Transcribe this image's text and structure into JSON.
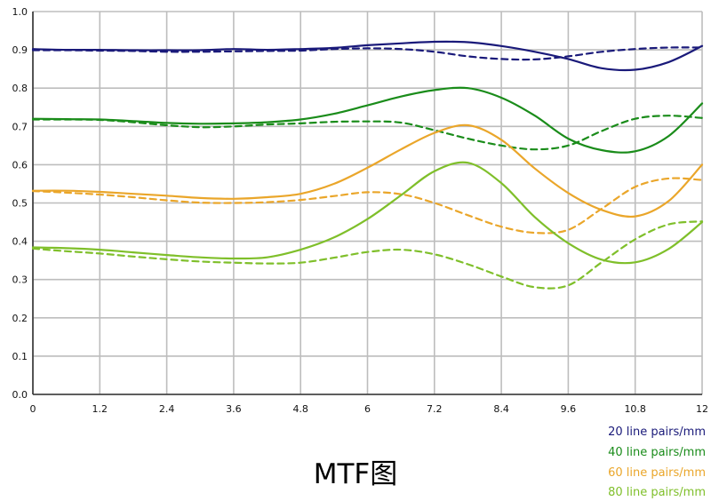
{
  "caption": "MTF图",
  "chart_data": {
    "type": "line",
    "title": "",
    "xlabel": "",
    "ylabel": "",
    "xlim": [
      0,
      12
    ],
    "ylim": [
      0,
      1.0
    ],
    "xticks": [
      "0",
      "1.2",
      "2.4",
      "3.6",
      "4.8",
      "6",
      "7.2",
      "8.4",
      "9.6",
      "10.8",
      "12"
    ],
    "yticks": [
      "0.0",
      "0.1",
      "0.2",
      "0.3",
      "0.4",
      "0.5",
      "0.6",
      "0.7",
      "0.8",
      "0.9",
      "1.0"
    ],
    "grid": true,
    "legend_position": "bottom-right",
    "x": [
      0,
      0.6,
      1.2,
      1.8,
      2.4,
      3.0,
      3.6,
      4.2,
      4.8,
      5.4,
      6.0,
      6.6,
      7.2,
      7.8,
      8.4,
      9.0,
      9.6,
      10.2,
      10.8,
      11.4,
      12.0
    ],
    "series": [
      {
        "name": "20 line pairs/mm",
        "style": "solid",
        "color": "#1a1a7a",
        "values": [
          0.902,
          0.9,
          0.9,
          0.899,
          0.899,
          0.899,
          0.902,
          0.9,
          0.902,
          0.905,
          0.912,
          0.917,
          0.921,
          0.92,
          0.91,
          0.895,
          0.876,
          0.852,
          0.848,
          0.868,
          0.91
        ]
      },
      {
        "name": "20 line pairs/mm",
        "style": "dashed",
        "color": "#1a1a7a",
        "values": [
          0.899,
          0.899,
          0.898,
          0.897,
          0.895,
          0.895,
          0.896,
          0.897,
          0.898,
          0.902,
          0.904,
          0.902,
          0.895,
          0.883,
          0.876,
          0.875,
          0.883,
          0.895,
          0.902,
          0.906,
          0.906
        ]
      },
      {
        "name": "40 line pairs/mm",
        "style": "solid",
        "color": "#1a8c1a",
        "values": [
          0.72,
          0.719,
          0.718,
          0.714,
          0.709,
          0.707,
          0.708,
          0.711,
          0.718,
          0.733,
          0.755,
          0.778,
          0.795,
          0.8,
          0.775,
          0.728,
          0.668,
          0.638,
          0.635,
          0.675,
          0.76
        ]
      },
      {
        "name": "40 line pairs/mm",
        "style": "dashed",
        "color": "#1a8c1a",
        "values": [
          0.718,
          0.718,
          0.717,
          0.711,
          0.703,
          0.698,
          0.7,
          0.705,
          0.708,
          0.712,
          0.713,
          0.71,
          0.69,
          0.668,
          0.65,
          0.64,
          0.65,
          0.688,
          0.72,
          0.728,
          0.722
        ]
      },
      {
        "name": "60 line pairs/mm",
        "style": "solid",
        "color": "#eaa62a",
        "values": [
          0.532,
          0.532,
          0.529,
          0.524,
          0.519,
          0.513,
          0.511,
          0.515,
          0.524,
          0.55,
          0.592,
          0.64,
          0.683,
          0.703,
          0.665,
          0.59,
          0.526,
          0.482,
          0.465,
          0.505,
          0.6
        ]
      },
      {
        "name": "60 line pairs/mm",
        "style": "dashed",
        "color": "#eaa62a",
        "values": [
          0.531,
          0.527,
          0.522,
          0.515,
          0.507,
          0.501,
          0.5,
          0.502,
          0.508,
          0.518,
          0.528,
          0.523,
          0.5,
          0.468,
          0.438,
          0.422,
          0.43,
          0.485,
          0.542,
          0.564,
          0.56
        ]
      },
      {
        "name": "80 line pairs/mm",
        "style": "solid",
        "color": "#7fbf2a",
        "values": [
          0.384,
          0.382,
          0.378,
          0.371,
          0.364,
          0.358,
          0.355,
          0.358,
          0.378,
          0.41,
          0.458,
          0.52,
          0.583,
          0.605,
          0.552,
          0.463,
          0.395,
          0.352,
          0.345,
          0.38,
          0.45
        ]
      },
      {
        "name": "80 line pairs/mm",
        "style": "dashed",
        "color": "#7fbf2a",
        "values": [
          0.381,
          0.374,
          0.368,
          0.36,
          0.353,
          0.347,
          0.344,
          0.342,
          0.344,
          0.357,
          0.372,
          0.378,
          0.366,
          0.34,
          0.308,
          0.28,
          0.285,
          0.345,
          0.405,
          0.444,
          0.452
        ]
      }
    ],
    "legend": [
      {
        "label": "20 line pairs/mm",
        "color": "#1a1a7a"
      },
      {
        "label": "40 line pairs/mm",
        "color": "#1a8c1a"
      },
      {
        "label": "60 line pairs/mm",
        "color": "#eaa62a"
      },
      {
        "label": "80 line pairs/mm",
        "color": "#7fbf2a"
      }
    ]
  }
}
